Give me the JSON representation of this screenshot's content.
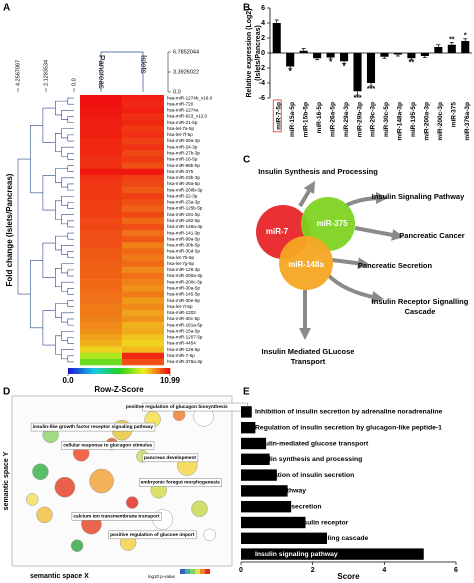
{
  "panel_labels": [
    "A",
    "B",
    "C",
    "D",
    "E"
  ],
  "chart_data": [
    {
      "type": "heatmap",
      "columns": [
        "Pancreas",
        "Islets"
      ],
      "rows": [
        "hsa-miR-1274b_v16.0",
        "hsa-miR-720",
        "hsa-miR-1274a",
        "hsa-miR-923_v12.0",
        "hsa-miR-21-5p",
        "hsa-let-7a-5p",
        "hsa-let-7f-5p",
        "hsa-miR-29a-3p",
        "hsa-miR-24-3p",
        "hsa-miR-27b-3p",
        "hsa-miR-16-5p",
        "hsa-miR-99b-5p",
        "hsa-miR-375",
        "hsa-miR-23b-3p",
        "hsa-miR-26a-5p",
        "hsa-miR-200b-3p",
        "hsa-miR-22-3p",
        "hsa-miR-23a-3p",
        "hsa-miR-125b-5p",
        "hsa-miR-191-5p",
        "hsa-miR-182-5p",
        "hsa-miR-148a-3p",
        "hsa-miR-141-3p",
        "hsa-miR-99a-5p",
        "hsa-miR-30b-5p",
        "hsa-miR-30d-5p",
        "hsa-let-7b-5p",
        "hsa-let-7g-5p",
        "hsa-miR-126-3p",
        "hsa-miR-200a-3p",
        "hsa-miR-200c-3p",
        "hsa-miR-30a-5p",
        "hsa-miR-145-5p",
        "hsa-miR-30e-5p",
        "hsa-let-7i-5p",
        "hsa-miR-1202",
        "hsa-miR-30c-5p",
        "hsa-miR-181a-5p",
        "hsa-miR-15a-5p",
        "hsa-miR-1207-5p",
        "hsa-miR-4454",
        "hsa-miR-126-5p",
        "hsa-miR-7-5p",
        "hsa-miR-376a-3p"
      ],
      "values": [
        [
          10.99,
          10.8
        ],
        [
          10.99,
          10.7
        ],
        [
          10.9,
          10.8
        ],
        [
          10.9,
          10.6
        ],
        [
          10.8,
          10.7
        ],
        [
          10.8,
          10.5
        ],
        [
          10.8,
          10.6
        ],
        [
          10.7,
          10.4
        ],
        [
          10.7,
          10.6
        ],
        [
          10.7,
          10.3
        ],
        [
          10.6,
          10.5
        ],
        [
          10.6,
          10.2
        ],
        [
          10.9,
          10.9
        ],
        [
          10.6,
          10.4
        ],
        [
          10.5,
          10.3
        ],
        [
          10.5,
          10.1
        ],
        [
          10.5,
          10.4
        ],
        [
          10.4,
          10.2
        ],
        [
          10.4,
          10.0
        ],
        [
          10.4,
          10.3
        ],
        [
          10.3,
          9.9
        ],
        [
          10.3,
          10.2
        ],
        [
          10.2,
          9.8
        ],
        [
          10.2,
          10.1
        ],
        [
          10.2,
          9.6
        ],
        [
          10.1,
          9.9
        ],
        [
          10.1,
          9.7
        ],
        [
          10.0,
          9.9
        ],
        [
          10.0,
          9.5
        ],
        [
          10.0,
          9.8
        ],
        [
          9.9,
          9.6
        ],
        [
          9.9,
          9.4
        ],
        [
          9.8,
          9.7
        ],
        [
          9.8,
          9.3
        ],
        [
          9.7,
          9.5
        ],
        [
          9.7,
          9.2
        ],
        [
          9.6,
          9.4
        ],
        [
          9.5,
          9.0
        ],
        [
          9.4,
          9.1
        ],
        [
          9.2,
          8.8
        ],
        [
          9.0,
          8.6
        ],
        [
          8.6,
          8.9
        ],
        [
          7.4,
          10.7
        ],
        [
          6.5,
          10.2
        ]
      ],
      "zlim": [
        0,
        10.99
      ],
      "zticks": [
        {
          "value": 0,
          "label": "0.0"
        },
        10.99
      ],
      "colorscale": [
        "#1a1ad0",
        "#18c8e8",
        "#20d020",
        "#f0f020",
        "#f01010"
      ],
      "colorbar_label": "Row-Z-Score",
      "ylabel": "Fold change (Islets/Pancreas)",
      "row_tree_ticks": [
        4.2567087,
        2.1283534,
        {
          "value": 0,
          "label": "0.0"
        }
      ],
      "col_tree_ticks": [
        6.7852044,
        3.3926022,
        {
          "value": 0,
          "label": "0.0"
        }
      ]
    },
    {
      "type": "bar",
      "categories": [
        "miR-7-5p",
        "miR-15a-5p",
        "miR-15b-5p",
        "miR-16-5p",
        "miR-26a-5p",
        "miR-29a-3p",
        "miR-29b-3p",
        "miR-29c-3p",
        "miR-30c-5p",
        "miR-148a-3p",
        "miR-195-5p",
        "miR-200a-3p",
        "miR-200c-3p",
        "miR-375",
        "miR-376a-3p"
      ],
      "values": [
        4.0,
        -1.8,
        0.3,
        -0.7,
        -0.6,
        -1.1,
        -5.1,
        -4.0,
        -0.5,
        -0.2,
        -0.7,
        -0.4,
        0.8,
        1.1,
        1.6
      ],
      "errors": [
        0.4,
        0.3,
        0.3,
        0.2,
        0.2,
        0.3,
        0.5,
        0.4,
        0.2,
        0.2,
        0.2,
        0.2,
        0.3,
        0.3,
        0.3
      ],
      "significance": [
        "",
        "*",
        "",
        "",
        "*",
        "*",
        "***",
        "***",
        "",
        "",
        "**",
        "",
        "",
        "**",
        "*"
      ],
      "ylim": [
        -6,
        6
      ],
      "yticks": [
        -6,
        -4,
        -2,
        0,
        2,
        4,
        6
      ],
      "ylabel": [
        "Relative expression (Log2)",
        "(Islets/Pancreas)"
      ],
      "color": "#000000",
      "highlight": 0,
      "highlight_color": "#e03030"
    },
    {
      "type": "scatter",
      "xlabel": "semantic space X",
      "ylabel": "semantic space Y",
      "xlim": [
        0,
        10
      ],
      "ylim": [
        0,
        10
      ],
      "x": [
        6.5,
        9.0,
        1.5,
        5.0,
        3.0,
        6.0,
        8.2,
        1.0,
        4.0,
        2.2,
        6.8,
        5.5,
        8.8,
        1.2,
        3.5,
        7.0,
        5.3,
        7.8,
        9.3,
        2.8,
        0.6,
        4.5
      ],
      "values": [
        9.0,
        9.2,
        8.0,
        8.3,
        6.8,
        6.6,
        6.0,
        5.6,
        5.0,
        4.6,
        4.4,
        3.6,
        3.2,
        2.8,
        2.2,
        2.5,
        1.0,
        9.3,
        1.5,
        0.8,
        3.8,
        7.4
      ],
      "sizes": [
        4,
        5,
        4,
        5,
        4,
        3,
        5,
        4,
        6,
        5,
        4,
        3,
        4,
        4,
        5,
        5,
        4,
        3,
        3,
        3,
        3,
        3
      ],
      "colors": [
        "#f4e04a",
        "#ffffff",
        "#8fd36b",
        "#e8c93c",
        "#ec4b2a",
        "#cfe05a",
        "#f5d64a",
        "#3cb44b",
        "#f2a33a",
        "#e8442a",
        "#d8dc4c",
        "#e03424",
        "#c8d850",
        "#f0c040",
        "#e64a2c",
        "#ffffff",
        "#f4d24a",
        "#f08030",
        "#ffffff",
        "#3aa84a",
        "#f3e060",
        "#e85c30"
      ],
      "labels": [
        null,
        null,
        "insulin-like growth factor receptor signaling pathway",
        null,
        "cellular response to glucagon stimulus",
        null,
        "pancreas development",
        null,
        null,
        null,
        "embryonic foregut morphogenesis",
        null,
        null,
        null,
        "calcium ion transmembrane transport",
        null,
        "positive regulation of glucose import",
        "positive regulation of glucagon biosynthesis",
        null,
        null,
        null,
        null
      ],
      "colorbar_label": "log10 p-value",
      "colorbar_colors": [
        "#3060c0",
        "#40b0a0",
        "#80d060",
        "#e0e040",
        "#f08030",
        "#e03020"
      ]
    },
    {
      "type": "bar",
      "orientation": "horizontal",
      "categories": [
        "Inhibition of insulin secretion by adrenaline noradrenaline",
        "Regulation of insulin secretion by glucagon-like peptide-1",
        "Insulin-mediated glucose transport",
        "Insulin synthesis and processing",
        "Regulation of insulin secretion",
        "Insulin pathway",
        "Pancreatic secretion",
        "Signaling by insulin receptor",
        "Insulin receptor signalling cascade",
        "Insulin signaling pathway"
      ],
      "values": [
        0.3,
        0.4,
        0.7,
        0.8,
        1.0,
        1.3,
        1.4,
        1.8,
        2.4,
        5.1
      ],
      "xlim": [
        0,
        6
      ],
      "xticks": [
        0,
        2,
        4,
        6
      ],
      "xlabel": "Score",
      "color": "#000000"
    }
  ],
  "diagram": {
    "nodes": [
      {
        "label": "miR-7",
        "color": "#e8262a"
      },
      {
        "label": "miR-375",
        "color": "#7ed321"
      },
      {
        "label": "miR-148a",
        "color": "#f5a623"
      }
    ],
    "targets": [
      "Insulin Synthesis and Processing",
      "Insulin Signaling Pathway",
      "Pancreatic Cancer",
      "Pancreatic Secretion",
      "Insulin Receptor Signalling\nCascade",
      "Insulin Mediated GLucose\nTransport"
    ]
  }
}
